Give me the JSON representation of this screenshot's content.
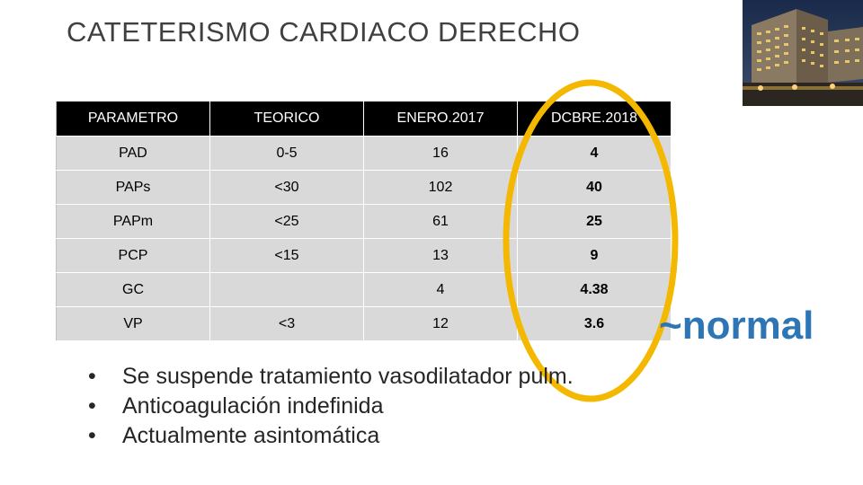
{
  "slide": {
    "title": "CATETERISMO CARDIACO DERECHO",
    "photo_icon": "hospital-building-photo"
  },
  "table": {
    "headers": [
      "PARAMETRO",
      "TEORICO",
      "ENERO.2017",
      "DCBRE.2018"
    ],
    "rows": [
      [
        "PAD",
        "0-5",
        "16",
        "4"
      ],
      [
        "PAPs",
        "<30",
        "102",
        "40"
      ],
      [
        "PAPm",
        "<25",
        "61",
        "25"
      ],
      [
        "PCP",
        "<15",
        "13",
        "9"
      ],
      [
        "GC",
        "",
        "4",
        "4.38"
      ],
      [
        "VP",
        "<3",
        "12",
        "3.6"
      ]
    ]
  },
  "annotation": {
    "label": "~normal",
    "color": "#2e75b6",
    "highlight_color": "#f5b800"
  },
  "bullets": {
    "symbol": "•",
    "items": [
      "Se suspende tratamiento vasodilatador pulm.",
      "Anticoagulación indefinida",
      "Actualmente asintomática"
    ]
  }
}
